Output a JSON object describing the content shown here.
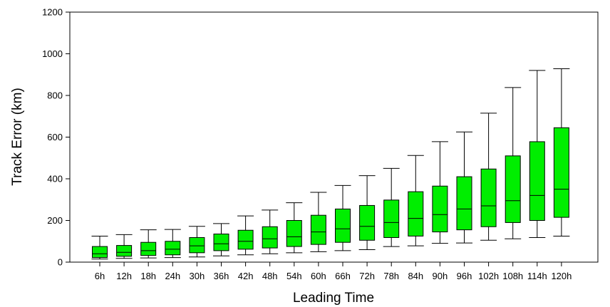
{
  "chart_data": {
    "type": "boxplot",
    "xlabel": "Leading Time",
    "ylabel": "Track Error (km)",
    "ylim": [
      0,
      1200
    ],
    "yticks": [
      0,
      200,
      400,
      600,
      800,
      1000,
      1200
    ],
    "grid": false,
    "box_color": "#00ee00",
    "categories": [
      "6h",
      "12h",
      "18h",
      "24h",
      "30h",
      "36h",
      "42h",
      "48h",
      "54h",
      "60h",
      "66h",
      "72h",
      "78h",
      "84h",
      "90h",
      "96h",
      "102h",
      "108h",
      "114h",
      "120h"
    ],
    "boxes": [
      {
        "whisker_low": 15,
        "q1": 22,
        "median": 40,
        "q3": 75,
        "whisker_high": 125
      },
      {
        "whisker_low": 18,
        "q1": 28,
        "median": 47,
        "q3": 80,
        "whisker_high": 132
      },
      {
        "whisker_low": 20,
        "q1": 32,
        "median": 55,
        "q3": 95,
        "whisker_high": 155
      },
      {
        "whisker_low": 22,
        "q1": 35,
        "median": 62,
        "q3": 100,
        "whisker_high": 157
      },
      {
        "whisker_low": 25,
        "q1": 45,
        "median": 78,
        "q3": 118,
        "whisker_high": 172
      },
      {
        "whisker_low": 30,
        "q1": 55,
        "median": 88,
        "q3": 135,
        "whisker_high": 185
      },
      {
        "whisker_low": 35,
        "q1": 62,
        "median": 100,
        "q3": 153,
        "whisker_high": 222
      },
      {
        "whisker_low": 40,
        "q1": 68,
        "median": 112,
        "q3": 170,
        "whisker_high": 250
      },
      {
        "whisker_low": 45,
        "q1": 75,
        "median": 122,
        "q3": 200,
        "whisker_high": 285
      },
      {
        "whisker_low": 50,
        "q1": 85,
        "median": 145,
        "q3": 225,
        "whisker_high": 335
      },
      {
        "whisker_low": 55,
        "q1": 95,
        "median": 160,
        "q3": 255,
        "whisker_high": 368
      },
      {
        "whisker_low": 60,
        "q1": 105,
        "median": 172,
        "q3": 272,
        "whisker_high": 415
      },
      {
        "whisker_low": 75,
        "q1": 118,
        "median": 190,
        "q3": 298,
        "whisker_high": 450
      },
      {
        "whisker_low": 78,
        "q1": 125,
        "median": 210,
        "q3": 338,
        "whisker_high": 512
      },
      {
        "whisker_low": 90,
        "q1": 145,
        "median": 228,
        "q3": 365,
        "whisker_high": 578
      },
      {
        "whisker_low": 92,
        "q1": 155,
        "median": 255,
        "q3": 410,
        "whisker_high": 625
      },
      {
        "whisker_low": 105,
        "q1": 170,
        "median": 270,
        "q3": 447,
        "whisker_high": 715
      },
      {
        "whisker_low": 112,
        "q1": 190,
        "median": 295,
        "q3": 510,
        "whisker_high": 838
      },
      {
        "whisker_low": 118,
        "q1": 200,
        "median": 320,
        "q3": 578,
        "whisker_high": 920
      },
      {
        "whisker_low": 125,
        "q1": 215,
        "median": 350,
        "q3": 645,
        "whisker_high": 928
      }
    ]
  }
}
